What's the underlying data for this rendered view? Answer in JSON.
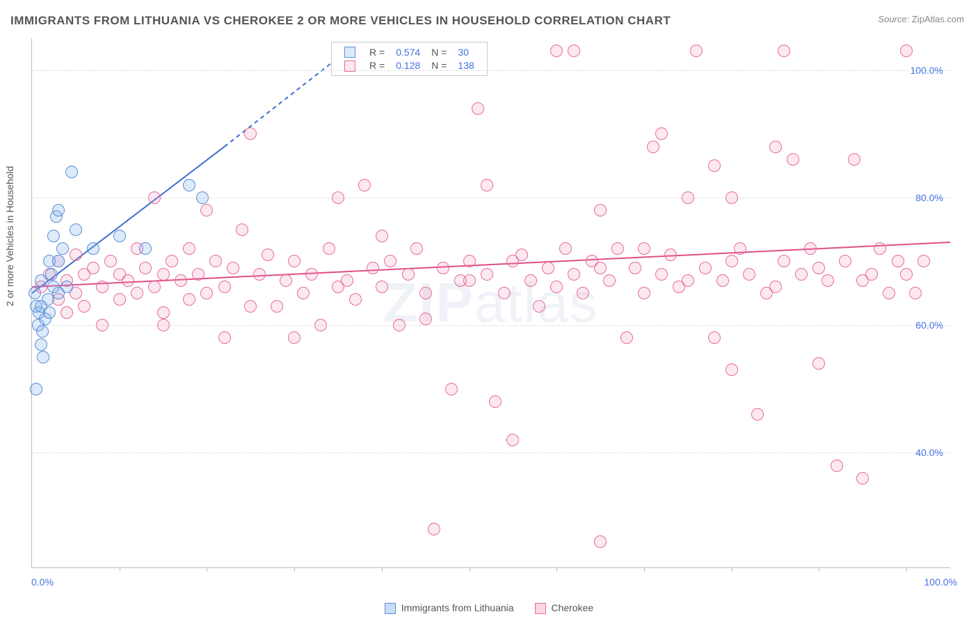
{
  "title": "IMMIGRANTS FROM LITHUANIA VS CHEROKEE 2 OR MORE VEHICLES IN HOUSEHOLD CORRELATION CHART",
  "source_label": "Source:",
  "source_value": "ZipAtlas.com",
  "ylabel": "2 or more Vehicles in Household",
  "watermark_zip": "ZIP",
  "watermark_atlas": "atlas",
  "chart": {
    "type": "scatter",
    "xlim": [
      0,
      105
    ],
    "ylim": [
      22,
      105
    ],
    "x_axis_min_label": "0.0%",
    "x_axis_max_label": "100.0%",
    "y_ticks": [
      40,
      60,
      80,
      100
    ],
    "y_tick_labels": [
      "40.0%",
      "60.0%",
      "80.0%",
      "100.0%"
    ],
    "x_tick_positions": [
      10,
      20,
      30,
      40,
      50,
      60,
      70,
      80,
      90,
      100
    ],
    "grid_color": "#dddddd",
    "axis_color": "#bbbbbb",
    "tick_label_color": "#4472e4",
    "background_color": "#ffffff",
    "marker_radius": 9,
    "marker_stroke_width": 1.5,
    "marker_fill_opacity": 0.25,
    "series": [
      {
        "name": "Immigrants from Lithuania",
        "color_stroke": "#5a8fd6",
        "color_fill": "rgba(120,170,230,0.25)",
        "R": "0.574",
        "N": "30",
        "trend": {
          "x1": 0,
          "y1": 65,
          "x2": 22,
          "y2": 88,
          "x2_dash": 36,
          "y2_dash": 103,
          "color": "#3a6fd0",
          "width": 2
        },
        "points": [
          [
            0.3,
            65
          ],
          [
            0.5,
            63
          ],
          [
            0.7,
            60
          ],
          [
            0.8,
            62
          ],
          [
            1.0,
            67
          ],
          [
            1.2,
            59
          ],
          [
            1.5,
            61
          ],
          [
            1.8,
            64
          ],
          [
            2.0,
            70
          ],
          [
            2.2,
            68
          ],
          [
            2.5,
            74
          ],
          [
            2.8,
            77
          ],
          [
            3.0,
            78
          ],
          [
            3.5,
            72
          ],
          [
            4.0,
            66
          ],
          [
            4.5,
            84
          ],
          [
            1.0,
            57
          ],
          [
            1.3,
            55
          ],
          [
            2.0,
            62
          ],
          [
            3.0,
            65
          ],
          [
            0.5,
            50
          ],
          [
            1.0,
            63
          ],
          [
            2.5,
            66
          ],
          [
            3.0,
            70
          ],
          [
            5.0,
            75
          ],
          [
            7.0,
            72
          ],
          [
            10.0,
            74
          ],
          [
            13.0,
            72
          ],
          [
            18.0,
            82
          ],
          [
            19.5,
            80
          ]
        ]
      },
      {
        "name": "Cherokee",
        "color_stroke": "#e86a9a",
        "color_fill": "rgba(240,140,180,0.20)",
        "R": "0.128",
        "N": "138",
        "trend": {
          "x1": 0,
          "y1": 66,
          "x2": 105,
          "y2": 73,
          "color": "#e04d88",
          "width": 2
        },
        "points": [
          [
            1,
            66
          ],
          [
            2,
            68
          ],
          [
            3,
            64
          ],
          [
            3,
            70
          ],
          [
            4,
            62
          ],
          [
            4,
            67
          ],
          [
            5,
            65
          ],
          [
            5,
            71
          ],
          [
            6,
            68
          ],
          [
            6,
            63
          ],
          [
            7,
            69
          ],
          [
            8,
            66
          ],
          [
            8,
            60
          ],
          [
            9,
            70
          ],
          [
            10,
            64
          ],
          [
            10,
            68
          ],
          [
            11,
            67
          ],
          [
            12,
            65
          ],
          [
            12,
            72
          ],
          [
            13,
            69
          ],
          [
            14,
            80
          ],
          [
            14,
            66
          ],
          [
            15,
            68
          ],
          [
            15,
            62
          ],
          [
            16,
            70
          ],
          [
            17,
            67
          ],
          [
            18,
            64
          ],
          [
            18,
            72
          ],
          [
            19,
            68
          ],
          [
            20,
            65
          ],
          [
            21,
            70
          ],
          [
            22,
            66
          ],
          [
            22,
            58
          ],
          [
            23,
            69
          ],
          [
            24,
            75
          ],
          [
            25,
            90
          ],
          [
            26,
            68
          ],
          [
            27,
            71
          ],
          [
            28,
            63
          ],
          [
            29,
            67
          ],
          [
            30,
            70
          ],
          [
            31,
            65
          ],
          [
            32,
            68
          ],
          [
            33,
            60
          ],
          [
            34,
            72
          ],
          [
            35,
            80
          ],
          [
            36,
            67
          ],
          [
            37,
            64
          ],
          [
            38,
            82
          ],
          [
            39,
            69
          ],
          [
            40,
            66
          ],
          [
            41,
            70
          ],
          [
            42,
            60
          ],
          [
            43,
            68
          ],
          [
            44,
            72
          ],
          [
            45,
            65
          ],
          [
            46,
            28
          ],
          [
            47,
            69
          ],
          [
            48,
            50
          ],
          [
            49,
            67
          ],
          [
            50,
            70
          ],
          [
            51,
            94
          ],
          [
            52,
            68
          ],
          [
            52,
            82
          ],
          [
            53,
            48
          ],
          [
            54,
            65
          ],
          [
            55,
            42
          ],
          [
            56,
            71
          ],
          [
            57,
            67
          ],
          [
            58,
            63
          ],
          [
            59,
            69
          ],
          [
            60,
            103
          ],
          [
            61,
            72
          ],
          [
            62,
            68
          ],
          [
            62,
            103
          ],
          [
            63,
            65
          ],
          [
            64,
            70
          ],
          [
            65,
            78
          ],
          [
            65,
            26
          ],
          [
            66,
            67
          ],
          [
            67,
            72
          ],
          [
            68,
            58
          ],
          [
            69,
            69
          ],
          [
            70,
            65
          ],
          [
            71,
            88
          ],
          [
            72,
            68
          ],
          [
            72,
            90
          ],
          [
            73,
            71
          ],
          [
            74,
            66
          ],
          [
            75,
            80
          ],
          [
            76,
            103
          ],
          [
            77,
            69
          ],
          [
            78,
            85
          ],
          [
            78,
            58
          ],
          [
            79,
            67
          ],
          [
            80,
            80
          ],
          [
            80,
            53
          ],
          [
            81,
            72
          ],
          [
            82,
            68
          ],
          [
            83,
            46
          ],
          [
            84,
            65
          ],
          [
            85,
            88
          ],
          [
            86,
            70
          ],
          [
            86,
            103
          ],
          [
            87,
            86
          ],
          [
            88,
            68
          ],
          [
            89,
            72
          ],
          [
            90,
            54
          ],
          [
            91,
            67
          ],
          [
            92,
            38
          ],
          [
            93,
            70
          ],
          [
            94,
            86
          ],
          [
            95,
            36
          ],
          [
            96,
            68
          ],
          [
            97,
            72
          ],
          [
            98,
            65
          ],
          [
            99,
            70
          ],
          [
            100,
            68
          ],
          [
            101,
            65
          ],
          [
            102,
            70
          ],
          [
            15,
            60
          ],
          [
            20,
            78
          ],
          [
            25,
            63
          ],
          [
            30,
            58
          ],
          [
            35,
            66
          ],
          [
            40,
            74
          ],
          [
            45,
            61
          ],
          [
            50,
            67
          ],
          [
            55,
            70
          ],
          [
            60,
            66
          ],
          [
            65,
            69
          ],
          [
            70,
            72
          ],
          [
            75,
            67
          ],
          [
            80,
            70
          ],
          [
            85,
            66
          ],
          [
            90,
            69
          ],
          [
            95,
            67
          ],
          [
            100,
            103
          ]
        ]
      }
    ]
  },
  "legend_bottom": [
    {
      "label": "Immigrants from Lithuania",
      "fill": "rgba(120,170,230,0.4)",
      "stroke": "#5a8fd6"
    },
    {
      "label": "Cherokee",
      "fill": "rgba(240,140,180,0.35)",
      "stroke": "#e86a9a"
    }
  ]
}
